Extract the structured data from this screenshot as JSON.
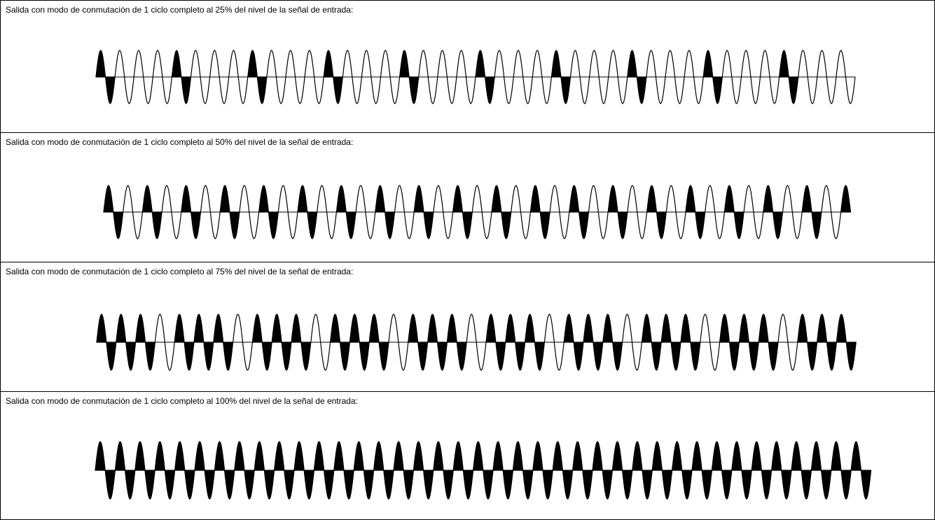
{
  "panels": [
    {
      "caption": "Salida con modo de conmutación de 1 ciclo completo al 25% del nivel de la señal de entrada:",
      "percent": 25,
      "pattern": [
        1,
        0,
        0,
        0
      ]
    },
    {
      "caption": "Salida con modo de conmutación de 1 ciclo completo al 50% del nivel de la señal de entrada:",
      "percent": 50,
      "pattern": [
        1,
        0
      ]
    },
    {
      "caption": "Salida con modo de conmutación de 1 ciclo completo al 75% del nivel de la señal de entrada:",
      "percent": 75,
      "pattern": [
        1,
        1,
        1,
        0
      ]
    },
    {
      "caption": "Salida con modo de conmutación de 1 ciclo completo al 100% del nivel de la señal de entrada:",
      "percent": 100,
      "pattern": [
        1
      ]
    }
  ],
  "colors": {
    "fill": "#000000",
    "stroke": "#000000",
    "background": "#ffffff"
  }
}
